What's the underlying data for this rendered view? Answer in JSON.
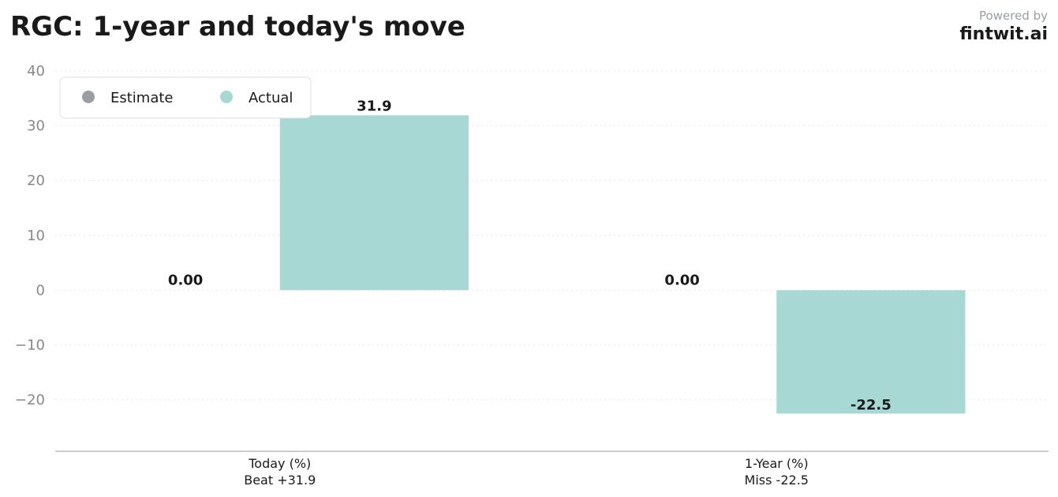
{
  "title": "RGC: 1-year and today's move",
  "brand": {
    "powered_by": "Powered by",
    "name": "fintwit.ai"
  },
  "chart_data": {
    "type": "bar",
    "categories": [
      "Today (%)",
      "1-Year (%)"
    ],
    "category_sublabels": [
      "Beat +31.9",
      "Miss -22.5"
    ],
    "series": [
      {
        "name": "Estimate",
        "color": "#9a9ea3",
        "values": [
          0,
          0
        ],
        "labels": [
          "0.00",
          "0.00"
        ]
      },
      {
        "name": "Actual",
        "color": "#a8d8d4",
        "values": [
          31.9,
          -22.5
        ],
        "labels": [
          "31.9",
          "-22.5"
        ]
      }
    ],
    "yticks": [
      -20,
      -10,
      0,
      10,
      20,
      30,
      40
    ],
    "ytick_labels": [
      "−20",
      "−10",
      "0",
      "10",
      "20",
      "30",
      "40"
    ],
    "ylim": [
      -29.4,
      40
    ],
    "grid": true,
    "legend_position": "top-left"
  }
}
